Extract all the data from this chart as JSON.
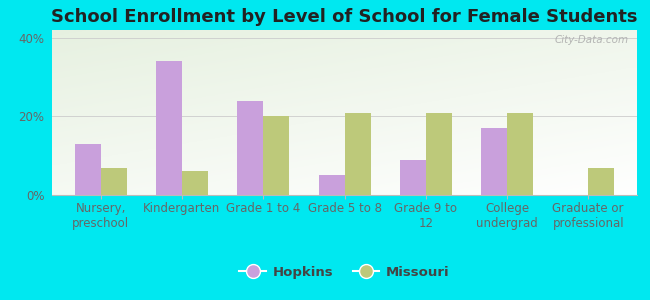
{
  "title": "School Enrollment by Level of School for Female Students",
  "categories": [
    "Nursery,\npreschool",
    "Kindergarten",
    "Grade 1 to 4",
    "Grade 5 to 8",
    "Grade 9 to\n12",
    "College\nundergrad",
    "Graduate or\nprofessional"
  ],
  "hopkins": [
    13,
    34,
    24,
    5,
    9,
    17,
    0
  ],
  "missouri": [
    7,
    6,
    20,
    21,
    21,
    21,
    7
  ],
  "hopkins_color": "#c9a0dc",
  "missouri_color": "#bdc97a",
  "background_outer": "#00e8f0",
  "yticks": [
    0,
    20,
    40
  ],
  "ylim": [
    0,
    42
  ],
  "bar_width": 0.32,
  "title_fontsize": 13,
  "legend_labels": [
    "Hopkins",
    "Missouri"
  ],
  "tick_fontsize": 8.5
}
